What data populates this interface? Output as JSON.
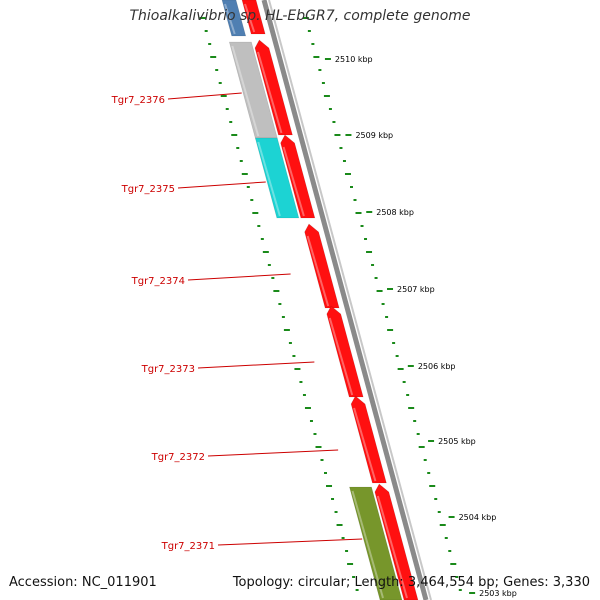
{
  "title": "Thioalkalivibrio sp. HL-EbGR7, complete genome",
  "footer": {
    "accession_label": "Accession:",
    "accession_value": "NC_011901",
    "topology_label": "Topology:",
    "topology_value": "circular",
    "length_label": "Length:",
    "length_value": "3,464,554 bp",
    "genes_label": "Genes:",
    "genes_value": "3,330"
  },
  "colors": {
    "gene_forward": "#ff1010",
    "gene_gray": "#bfbfbf",
    "gene_cyan": "#1cd3d3",
    "gene_olive": "#77962b",
    "gene_blue": "#4f7fb2",
    "backbone": "#8a8a8a",
    "gc_skew": "#1a8a1a",
    "gene_label": "#cc0000",
    "tick_label": "#000000"
  },
  "gene_labels": [
    {
      "name": "Tgr7_2376"
    },
    {
      "name": "Tgr7_2375"
    },
    {
      "name": "Tgr7_2374"
    },
    {
      "name": "Tgr7_2373"
    },
    {
      "name": "Tgr7_2372"
    },
    {
      "name": "Tgr7_2371"
    }
  ],
  "ticks": [
    {
      "label": "2510 kbp"
    },
    {
      "label": "2509 kbp"
    },
    {
      "label": "2508 kbp"
    },
    {
      "label": "2507 kbp"
    },
    {
      "label": "2506 kbp"
    },
    {
      "label": "2505 kbp"
    },
    {
      "label": "2504 kbp"
    },
    {
      "label": "2503 kbp"
    }
  ]
}
